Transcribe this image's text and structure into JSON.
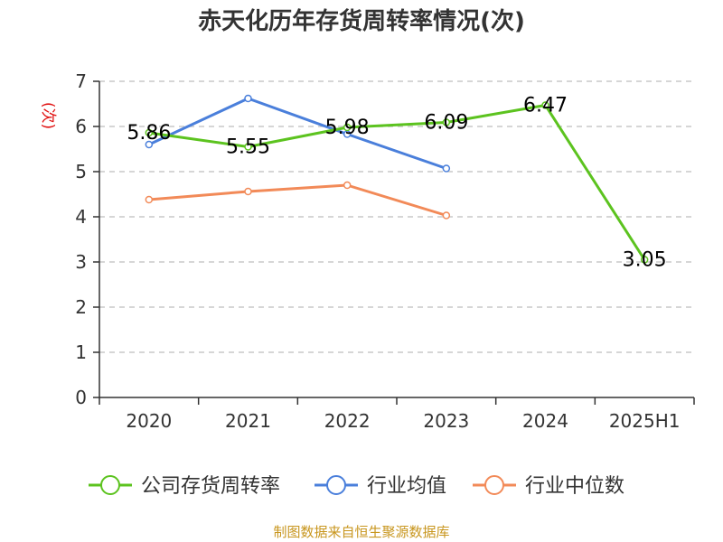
{
  "chart_data": {
    "type": "line",
    "title": "赤天化历年存货周转率情况(次)",
    "ylabel": "(次)",
    "xlabel": "",
    "categories": [
      "2020",
      "2021",
      "2022",
      "2023",
      "2024",
      "2025H1"
    ],
    "ylim": [
      0,
      7
    ],
    "yticks": [
      "0",
      "1",
      "2",
      "3",
      "4",
      "5",
      "6",
      "7"
    ],
    "grid": true,
    "legend_position": "bottom",
    "series": [
      {
        "name": "公司存货周转率",
        "color": "#5cc31f",
        "values": [
          5.86,
          5.55,
          5.98,
          6.09,
          6.47,
          3.05
        ],
        "labels": [
          "5.86",
          "5.55",
          "5.98",
          "6.09",
          "6.47",
          "3.05"
        ]
      },
      {
        "name": "行业均值",
        "color": "#4a7fdb",
        "values": [
          5.6,
          6.62,
          5.83,
          5.07,
          null,
          null
        ]
      },
      {
        "name": "行业中位数",
        "color": "#f28a58",
        "values": [
          4.38,
          4.56,
          4.7,
          4.03,
          null,
          null
        ]
      }
    ]
  },
  "source": "制图数据来自恒生聚源数据库"
}
